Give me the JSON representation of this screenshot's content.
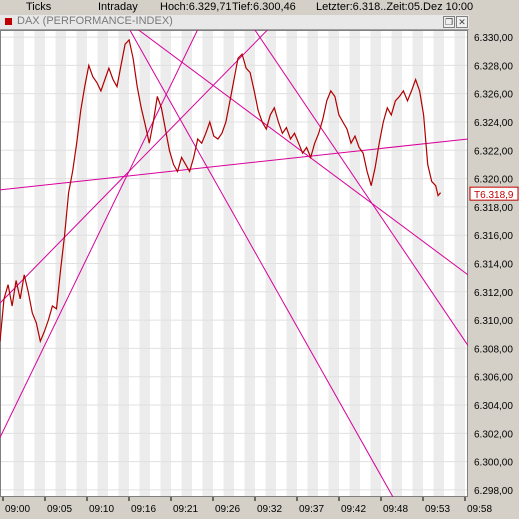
{
  "header": {
    "ticks_label": "Ticks",
    "intraday_label": "Intraday",
    "high": "Hoch:6.329,71",
    "low": "Tief:6.300,46",
    "last": "Letzter:6.318..Zeit:05.Dez 10:00"
  },
  "window": {
    "title": "DAX (PERFORMANCE-INDEX)",
    "restore_symbol": "❐",
    "close_symbol": "✕"
  },
  "chart_data": {
    "type": "line",
    "title": "DAX (PERFORMANCE-INDEX)",
    "xlabel": "",
    "ylabel": "",
    "x_ticks": [
      "09:00",
      "09:05",
      "09:10",
      "09:16",
      "09:21",
      "09:26",
      "09:32",
      "09:37",
      "09:42",
      "09:48",
      "09:53",
      "09:58"
    ],
    "y_ticks": [
      6.298,
      6.3,
      6.302,
      6.304,
      6.306,
      6.308,
      6.31,
      6.312,
      6.314,
      6.316,
      6.318,
      6.32,
      6.322,
      6.324,
      6.326,
      6.328,
      6.33
    ],
    "y_tick_labels": [
      "6.298,00",
      "6.300,00",
      "6.302,00",
      "6.304,00",
      "6.306,00",
      "6.308,00",
      "6.310,00",
      "6.312,00",
      "6.314,00",
      "6.316,00",
      "6.318,00",
      "6.320,00",
      "6.322,00",
      "6.324,00",
      "6.326,00",
      "6.328,00",
      "6.330,00"
    ],
    "ylim": [
      6.2975,
      6.3305
    ],
    "x_range_minutes": [
      0,
      58
    ],
    "grid": true,
    "last_value_label": "T6.318,9",
    "last_value": 6.3189,
    "series": [
      {
        "color": "#b00000",
        "points": [
          [
            0,
            6.3085
          ],
          [
            0.5,
            6.3115
          ],
          [
            1,
            6.3125
          ],
          [
            1.5,
            6.311
          ],
          [
            2,
            6.3128
          ],
          [
            2.5,
            6.3115
          ],
          [
            3,
            6.3132
          ],
          [
            3.5,
            6.312
          ],
          [
            4,
            6.3105
          ],
          [
            4.5,
            6.3098
          ],
          [
            5,
            6.3085
          ],
          [
            5.5,
            6.3092
          ],
          [
            6,
            6.31
          ],
          [
            6.5,
            6.311
          ],
          [
            7,
            6.3108
          ],
          [
            7.5,
            6.3135
          ],
          [
            8,
            6.316
          ],
          [
            8.5,
            6.319
          ],
          [
            9,
            6.3205
          ],
          [
            9.5,
            6.3225
          ],
          [
            10,
            6.3248
          ],
          [
            10.5,
            6.3265
          ],
          [
            11,
            6.328
          ],
          [
            11.5,
            6.3272
          ],
          [
            12,
            6.3268
          ],
          [
            12.5,
            6.3262
          ],
          [
            13,
            6.327
          ],
          [
            13.5,
            6.3278
          ],
          [
            14,
            6.327
          ],
          [
            14.5,
            6.3265
          ],
          [
            15,
            6.328
          ],
          [
            15.5,
            6.3295
          ],
          [
            16,
            6.3298
          ],
          [
            16.5,
            6.3285
          ],
          [
            17,
            6.3265
          ],
          [
            17.5,
            6.325
          ],
          [
            18,
            6.3238
          ],
          [
            18.5,
            6.3225
          ],
          [
            19,
            6.324
          ],
          [
            19.5,
            6.3258
          ],
          [
            20,
            6.325
          ],
          [
            20.5,
            6.3235
          ],
          [
            21,
            6.322
          ],
          [
            21.5,
            6.321
          ],
          [
            22,
            6.3205
          ],
          [
            22.5,
            6.3215
          ],
          [
            23,
            6.321
          ],
          [
            23.5,
            6.3205
          ],
          [
            24,
            6.3215
          ],
          [
            24.5,
            6.3228
          ],
          [
            25,
            6.3225
          ],
          [
            25.5,
            6.3232
          ],
          [
            26,
            6.324
          ],
          [
            26.5,
            6.323
          ],
          [
            27,
            6.3228
          ],
          [
            27.5,
            6.3232
          ],
          [
            28,
            6.324
          ],
          [
            28.5,
            6.3255
          ],
          [
            29,
            6.327
          ],
          [
            29.5,
            6.3285
          ],
          [
            30,
            6.3288
          ],
          [
            30.5,
            6.3278
          ],
          [
            31,
            6.3275
          ],
          [
            31.5,
            6.3262
          ],
          [
            32,
            6.3248
          ],
          [
            32.5,
            6.324
          ],
          [
            33,
            6.3235
          ],
          [
            33.5,
            6.3245
          ],
          [
            34,
            6.325
          ],
          [
            34.5,
            6.324
          ],
          [
            35,
            6.3232
          ],
          [
            35.5,
            6.3236
          ],
          [
            36,
            6.3228
          ],
          [
            36.5,
            6.3232
          ],
          [
            37,
            6.3225
          ],
          [
            37.5,
            6.3218
          ],
          [
            38,
            6.3222
          ],
          [
            38.5,
            6.3215
          ],
          [
            39,
            6.3225
          ],
          [
            39.5,
            6.3232
          ],
          [
            40,
            6.3242
          ],
          [
            40.5,
            6.3255
          ],
          [
            41,
            6.3262
          ],
          [
            41.5,
            6.3258
          ],
          [
            42,
            6.3245
          ],
          [
            42.5,
            6.324
          ],
          [
            43,
            6.3235
          ],
          [
            43.5,
            6.3225
          ],
          [
            44,
            6.323
          ],
          [
            44.5,
            6.3222
          ],
          [
            45,
            6.3218
          ],
          [
            45.5,
            6.3205
          ],
          [
            46,
            6.3195
          ],
          [
            46.5,
            6.3208
          ],
          [
            47,
            6.3225
          ],
          [
            47.5,
            6.324
          ],
          [
            48,
            6.325
          ],
          [
            48.5,
            6.3245
          ],
          [
            49,
            6.3255
          ],
          [
            49.5,
            6.3258
          ],
          [
            50,
            6.3262
          ],
          [
            50.5,
            6.3255
          ],
          [
            51,
            6.3262
          ],
          [
            51.5,
            6.327
          ],
          [
            52,
            6.3262
          ],
          [
            52.5,
            6.3245
          ],
          [
            53,
            6.321
          ],
          [
            53.5,
            6.3198
          ],
          [
            54,
            6.3195
          ],
          [
            54.3,
            6.3188
          ],
          [
            54.6,
            6.319
          ]
        ]
      }
    ],
    "trendlines": [
      {
        "from": [
          0,
          6.3192
        ],
        "to": [
          58,
          6.3228
        ]
      },
      {
        "from": [
          0,
          6.3112
        ],
        "to": [
          34,
          6.331
        ]
      },
      {
        "from": [
          0,
          6.3017
        ],
        "to": [
          24.9,
          6.331
        ]
      },
      {
        "from": [
          16,
          6.331
        ],
        "to": [
          58,
          6.3132
        ]
      },
      {
        "from": [
          31,
          6.331
        ],
        "to": [
          58,
          6.3082
        ]
      },
      {
        "from": [
          15.6,
          6.331
        ],
        "to": [
          48.7,
          6.2975
        ]
      }
    ]
  }
}
